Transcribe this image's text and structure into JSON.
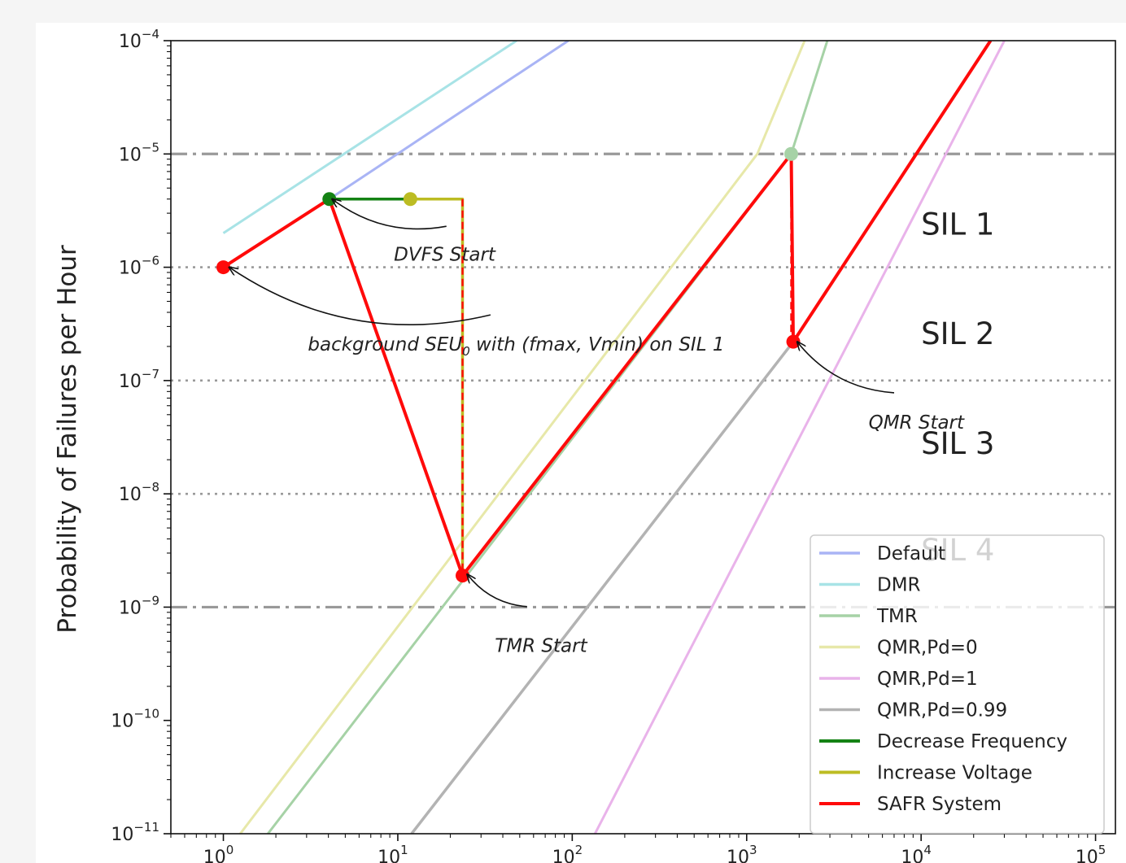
{
  "chart_data": {
    "type": "line",
    "title": "",
    "xlabel": "",
    "ylabel": "Probability of Failures per Hour",
    "xscale": "log",
    "yscale": "log",
    "xlim": [
      0.5,
      130000
    ],
    "ylim": [
      1e-11,
      0.0001
    ],
    "x_ticks": [
      {
        "value": 1,
        "base": "10",
        "exp": "0"
      },
      {
        "value": 10,
        "base": "10",
        "exp": "1"
      },
      {
        "value": 100,
        "base": "10",
        "exp": "2"
      },
      {
        "value": 1000,
        "base": "10",
        "exp": "3"
      },
      {
        "value": 10000,
        "base": "10",
        "exp": "4"
      },
      {
        "value": 100000,
        "base": "10",
        "exp": "5"
      }
    ],
    "y_ticks": [
      {
        "value": 0.0001,
        "base": "10",
        "exp": "−4"
      },
      {
        "value": 1e-05,
        "base": "10",
        "exp": "−5"
      },
      {
        "value": 1e-06,
        "base": "10",
        "exp": "−6"
      },
      {
        "value": 1e-07,
        "base": "10",
        "exp": "−7"
      },
      {
        "value": 1e-08,
        "base": "10",
        "exp": "−8"
      },
      {
        "value": 1e-09,
        "base": "10",
        "exp": "−9"
      },
      {
        "value": 1e-10,
        "base": "10",
        "exp": "−10"
      },
      {
        "value": 1e-11,
        "base": "10",
        "exp": "−11"
      }
    ],
    "series": [
      {
        "name": "Default",
        "color": "#a9b4f5",
        "width": 3,
        "points": [
          [
            4.05,
            4e-06
          ],
          [
            95,
            0.0001
          ]
        ]
      },
      {
        "name": "DMR",
        "color": "#a8e3e6",
        "width": 3,
        "points": [
          [
            1.0,
            2e-06
          ],
          [
            48,
            0.0001
          ]
        ]
      },
      {
        "name": "TMR",
        "color": "#a6d2a6",
        "width": 3,
        "points": [
          [
            1.8,
            1e-11
          ],
          [
            1800,
            1e-05
          ],
          [
            2900,
            0.0001
          ]
        ]
      },
      {
        "name": "QMR,Pd=0",
        "color": "#e7e8a9",
        "width": 3,
        "points": [
          [
            1.25,
            1e-11
          ],
          [
            1150,
            1e-05
          ],
          [
            2150,
            0.0001
          ]
        ]
      },
      {
        "name": "QMR,Pd=1",
        "color": "#e9b3ea",
        "width": 3,
        "points": [
          [
            135,
            1e-11
          ],
          [
            30000,
            0.0001
          ]
        ]
      },
      {
        "name": "QMR,Pd=0.99",
        "color": "#b3b3b3",
        "width": 3.5,
        "points": [
          [
            12,
            1e-11
          ],
          [
            1850,
            2.2e-07
          ]
        ]
      },
      {
        "name": "Decrease Frequency",
        "color": "#148214",
        "width": 3.5,
        "points": [
          [
            4.05,
            4e-06
          ],
          [
            11.8,
            4e-06
          ]
        ]
      },
      {
        "name": "Increase Voltage",
        "color": "#bcbc23",
        "width": 3.5,
        "points": [
          [
            11.8,
            4e-06
          ],
          [
            23.5,
            4e-06
          ],
          [
            23.5,
            1.9e-09
          ]
        ]
      },
      {
        "name": "SAFR System",
        "color": "#ff0a0a",
        "width": 4,
        "points": [
          [
            1.0,
            1e-06
          ],
          [
            4.05,
            4e-06
          ],
          [
            23.5,
            1.9e-09
          ],
          [
            1800,
            1e-05
          ],
          [
            1850,
            2.2e-07
          ],
          [
            25000,
            0.0001
          ]
        ]
      }
    ],
    "markers": [
      {
        "x": 1.0,
        "y": 1e-06,
        "color": "#ff0a0a"
      },
      {
        "x": 4.05,
        "y": 4e-06,
        "color": "#148214"
      },
      {
        "x": 11.8,
        "y": 4e-06,
        "color": "#bcbc23"
      },
      {
        "x": 23.5,
        "y": 1.9e-09,
        "color": "#ff0a0a"
      },
      {
        "x": 1800,
        "y": 1e-05,
        "color": "#a6d2a6"
      },
      {
        "x": 1850,
        "y": 2.2e-07,
        "color": "#ff0a0a"
      }
    ],
    "red_dashed_drops": [
      {
        "x": 23.5,
        "y_from": 4e-06,
        "y_to": 1.9e-09
      },
      {
        "x": 1800,
        "y_from": 1e-05,
        "y_to": 2.2e-07
      }
    ],
    "hlines": [
      {
        "y": 1e-05,
        "style": "dashdot",
        "color": "#999999"
      },
      {
        "y": 1e-09,
        "style": "dashdot",
        "color": "#999999"
      },
      {
        "y": 1e-06,
        "style": "dotted",
        "color": "#999999"
      },
      {
        "y": 1e-07,
        "style": "dotted",
        "color": "#999999"
      },
      {
        "y": 1e-08,
        "style": "dotted",
        "color": "#999999"
      }
    ],
    "region_labels": [
      {
        "text": "SIL 1",
        "x": 10000,
        "y": 2.4e-06
      },
      {
        "text": "SIL 2",
        "x": 10000,
        "y": 2.6e-07
      },
      {
        "text": "SIL 3",
        "x": 10000,
        "y": 2.8e-08
      },
      {
        "text": "SIL 4",
        "x": 10000,
        "y": 3.2e-09
      }
    ],
    "annotations": [
      {
        "text": "DVFS Start",
        "text_x": 9.5,
        "text_y": 1.3e-06,
        "point_x": 4.2,
        "point_y": 4e-06,
        "curve_from_x": 19,
        "curve_from_y": 2.3e-06
      },
      {
        "text_before": "background SEU",
        "subscript": "0",
        "text_after": " with (fmax, Vmin) on SIL 1",
        "text_x": 3.05,
        "text_y": 2.1e-07,
        "point_x": 1.08,
        "point_y": 1e-06,
        "curve_from_x": 34,
        "curve_from_y": 3.8e-07
      },
      {
        "text": "TMR Start",
        "text_x": 36,
        "text_y": 4.6e-10,
        "point_x": 25,
        "point_y": 1.95e-09,
        "curve_from_x": 55,
        "curve_from_y": 1.01e-09
      },
      {
        "text": "QMR Start",
        "text_x": 5000,
        "text_y": 4.3e-08,
        "point_x": 1950,
        "point_y": 2.2e-07,
        "curve_from_x": 7000,
        "curve_from_y": 7.8e-08
      }
    ],
    "legend": {
      "position": "lower-right",
      "entries": [
        {
          "label": "Default",
          "color": "#a9b4f5"
        },
        {
          "label": "DMR",
          "color": "#a8e3e6"
        },
        {
          "label": "TMR",
          "color": "#a6d2a6"
        },
        {
          "label": "QMR,Pd=0",
          "color": "#e7e8a9"
        },
        {
          "label": "QMR,Pd=1",
          "color": "#e9b3ea"
        },
        {
          "label": "QMR,Pd=0.99",
          "color": "#b3b3b3"
        },
        {
          "label": "Decrease Frequency",
          "color": "#148214"
        },
        {
          "label": "Increase Voltage",
          "color": "#bcbc23"
        },
        {
          "label": "SAFR System",
          "color": "#ff0a0a"
        }
      ]
    }
  }
}
